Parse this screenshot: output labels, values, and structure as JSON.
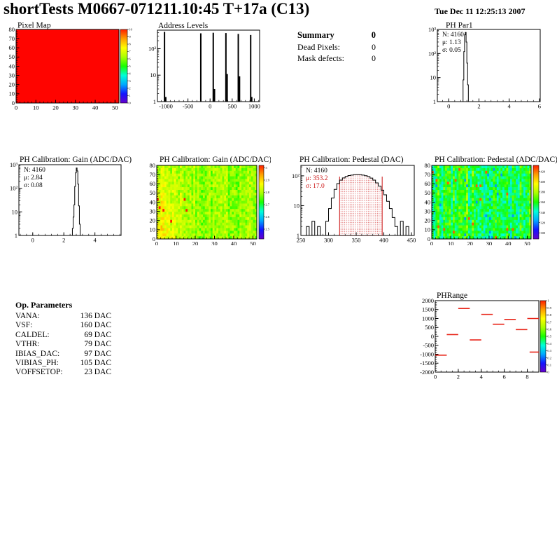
{
  "header": {
    "title": "shortTests M0667-071211.10:45 T+17a (C13)",
    "date": "Tue Dec 11 12:25:13 2007"
  },
  "summary": {
    "title": "Summary",
    "title_value": "0",
    "rows": [
      {
        "label": "Dead Pixels:",
        "value": "0"
      },
      {
        "label": "Mask defects:",
        "value": "0"
      }
    ]
  },
  "op_parameters": {
    "title": "Op. Parameters",
    "rows": [
      {
        "label": "VANA:",
        "value": "136 DAC"
      },
      {
        "label": "VSF:",
        "value": "160 DAC"
      },
      {
        "label": "CALDEL:",
        "value": "69 DAC"
      },
      {
        "label": "VTHR:",
        "value": "79 DAC"
      },
      {
        "label": "IBIAS_DAC:",
        "value": "97 DAC"
      },
      {
        "label": "VIBIAS_PH:",
        "value": "105 DAC"
      },
      {
        "label": "VOFFSETOP:",
        "value": "23 DAC"
      }
    ]
  },
  "colors": {
    "map_red": "#ff0400",
    "stat_red": "#cc1414",
    "segment_red": "#e82418",
    "axis_black": "#000000"
  },
  "palette": [
    "#6600cc",
    "#1414ff",
    "#00a8ff",
    "#00ffd9",
    "#17ff00",
    "#a9ff00",
    "#ffff00",
    "#ff9e00",
    "#ff1e00"
  ],
  "chart_data": [
    {
      "id": "pixel_map",
      "type": "heatmap",
      "title": "Pixel Map",
      "x": {
        "min": 0,
        "max": 52,
        "label_ticks": [
          0,
          10,
          20,
          30,
          40,
          50
        ],
        "minor": 2
      },
      "y": {
        "min": 0,
        "max": 80,
        "label_ticks": [
          0,
          10,
          20,
          30,
          40,
          50,
          60,
          70,
          80
        ],
        "minor": 2
      },
      "colorbar": {
        "min": 0,
        "max": 10,
        "labels": [
          10,
          9,
          8,
          7,
          6,
          5,
          4,
          3,
          2,
          1,
          0
        ]
      },
      "pattern": {
        "kind": "flat"
      },
      "note": "uniform red map - all 4160 pixels responding"
    },
    {
      "id": "address_levels",
      "type": "histogram",
      "title": "Address Levels",
      "ylog": true,
      "x": {
        "min": -1190,
        "max": 1120,
        "label_ticks": [
          -1000,
          -500,
          0,
          500,
          1000
        ],
        "minor": 100
      },
      "y": {
        "top_exp": 2.7,
        "decade_labels": [
          "1",
          "10",
          "10²"
        ]
      },
      "spikes": [
        [
          -1030,
          430
        ],
        [
          -1002,
          1.5
        ],
        [
          -210,
          380
        ],
        [
          72,
          400
        ],
        [
          100,
          3
        ],
        [
          358,
          390
        ],
        [
          386,
          11
        ],
        [
          638,
          360
        ],
        [
          666,
          9
        ],
        [
          918,
          330
        ],
        [
          942,
          1.5
        ]
      ]
    },
    {
      "id": "ph_par1",
      "type": "histogram",
      "title": "PH Par1",
      "ylog": true,
      "stats": [
        "N: 4160",
        "μ: 1.13",
        "σ: 0.05"
      ],
      "stats_colors": [
        "#000000",
        "#000000",
        "#000000"
      ],
      "x": {
        "min": -0.75,
        "max": 6.05,
        "label_ticks": [
          0,
          2,
          4,
          6
        ],
        "minor": 0.4
      },
      "y": {
        "top_exp": 3.0,
        "decade_labels": [
          "1",
          "10",
          "10²",
          "10³"
        ]
      },
      "bins": {
        "start": 0.9,
        "width": 0.05,
        "counts": [
          1,
          8,
          120,
          600,
          750,
          300,
          40,
          5,
          1
        ]
      }
    },
    {
      "id": "gain_hist",
      "type": "histogram",
      "title": "PH Calibration: Gain (ADC/DAC)",
      "ylog": true,
      "stats": [
        "N: 4160",
        "μ: 2.84",
        "σ: 0.08"
      ],
      "stats_colors": [
        "#000000",
        "#000000",
        "#000000"
      ],
      "x": {
        "min": -0.89,
        "max": 5.68,
        "label_ticks": [
          0,
          2,
          4
        ],
        "minor": 0.4
      },
      "y": {
        "top_exp": 3.0,
        "decade_labels": [
          "1",
          "10",
          "10²",
          "10³"
        ]
      },
      "bins": {
        "start": 2.45,
        "width": 0.05,
        "counts": [
          1,
          0,
          2,
          6,
          20,
          120,
          450,
          720,
          540,
          150,
          18,
          3,
          1
        ]
      }
    },
    {
      "id": "gain_map",
      "type": "heatmap",
      "title": "PH Calibration: Gain (ADC/DAC)",
      "x": {
        "min": 0,
        "max": 52,
        "label_ticks": [
          0,
          10,
          20,
          30,
          40,
          50
        ],
        "minor": 2
      },
      "y": {
        "min": 0,
        "max": 80,
        "label_ticks": [
          0,
          10,
          20,
          30,
          40,
          50,
          60,
          70,
          80
        ],
        "minor": 2
      },
      "colorbar": {
        "min": 2.42,
        "max": 3.02,
        "labels": [
          3,
          2.9,
          2.8,
          2.7,
          2.6,
          2.5
        ]
      },
      "pattern": {
        "kind": "noise",
        "seed": 7,
        "cols": 52,
        "rows": 27,
        "base": 2.79,
        "noise": 0.045,
        "col_noise": 0.025,
        "left_bias": {
          "cols": 20,
          "amp": 0.1
        },
        "hot": {
          "prob": 0.01,
          "value": 3.03,
          "max_col": 18
        }
      },
      "note": "gain map, greener right half, orange/red hotter gains on left columns"
    },
    {
      "id": "ped_hist",
      "type": "histogram",
      "title": "PH Calibration: Pedestal (DAC)",
      "ylog": true,
      "stats": [
        "N: 4160",
        "μ: 353.2",
        "σ: 17.0"
      ],
      "stats_colors": [
        "#000000",
        "#cc1414",
        "#cc1414"
      ],
      "x": {
        "min": 250,
        "max": 455,
        "label_ticks": [
          250,
          300,
          350,
          400,
          450
        ],
        "minor": 10
      },
      "y": {
        "top_exp": 2.35,
        "decade_labels": [
          "1",
          "10",
          "10²"
        ]
      },
      "bins": {
        "start": 255,
        "width": 5,
        "counts": [
          0,
          2,
          0,
          3,
          0,
          2,
          0,
          1,
          3,
          8,
          18,
          35,
          55,
          72,
          85,
          95,
          102,
          106,
          109,
          110,
          109,
          106,
          101,
          94,
          84,
          72,
          58,
          45,
          33,
          23,
          14,
          8,
          4,
          2,
          0,
          3,
          0,
          2,
          0
        ]
      },
      "red_lines": [
        320,
        397
      ],
      "fill_between_lines": "red-dots"
    },
    {
      "id": "ped_map",
      "type": "heatmap",
      "title": "PH Calibration: Pedestal (ADC/DAC)",
      "x": {
        "min": 0,
        "max": 52,
        "label_ticks": [
          0,
          10,
          20,
          30,
          40,
          50
        ],
        "minor": 2
      },
      "y": {
        "min": 0,
        "max": 80,
        "label_ticks": [
          0,
          10,
          20,
          30,
          40,
          50,
          60,
          70,
          80
        ],
        "minor": 2
      },
      "colorbar": {
        "min": 288,
        "max": 432,
        "labels": [
          420,
          400,
          380,
          360,
          340,
          320,
          300
        ]
      },
      "pattern": {
        "kind": "noise",
        "seed": 12,
        "cols": 52,
        "rows": 27,
        "base": 358,
        "noise": 13,
        "col_noise": 14,
        "hot": {
          "prob": 0.012,
          "value": 424
        },
        "cold": {
          "prob": 0.01,
          "value": 322
        }
      },
      "note": "pedestal map, green/cyan vertical column striping with sparse orange spots"
    },
    {
      "id": "ph_range",
      "type": "segments",
      "title": "PHRange",
      "x": {
        "min": 0,
        "max": 9,
        "label_ticks": [
          0,
          2,
          4,
          6,
          8
        ],
        "minor": 0.5
      },
      "y": {
        "min": -2000,
        "max": 2000,
        "label_ticks": [
          2000,
          1500,
          1000,
          500,
          0,
          -500,
          -1000,
          -1500,
          -2000
        ],
        "minor": 100
      },
      "colorbar": {
        "min": 0,
        "max": 1,
        "labels": [
          1,
          0.9,
          0.8,
          0.7,
          0.6,
          0.5,
          0.4,
          0.3,
          0.2,
          0.1,
          0
        ]
      },
      "segments": [
        [
          0,
          1,
          -1050
        ],
        [
          1,
          2,
          100
        ],
        [
          2,
          3,
          1560
        ],
        [
          3,
          4,
          -200
        ],
        [
          4,
          5,
          1230
        ],
        [
          5,
          6,
          680
        ],
        [
          6,
          7,
          950
        ],
        [
          7,
          8,
          380
        ],
        [
          8,
          9,
          1000
        ],
        [
          8.2,
          9,
          -880
        ]
      ]
    }
  ]
}
